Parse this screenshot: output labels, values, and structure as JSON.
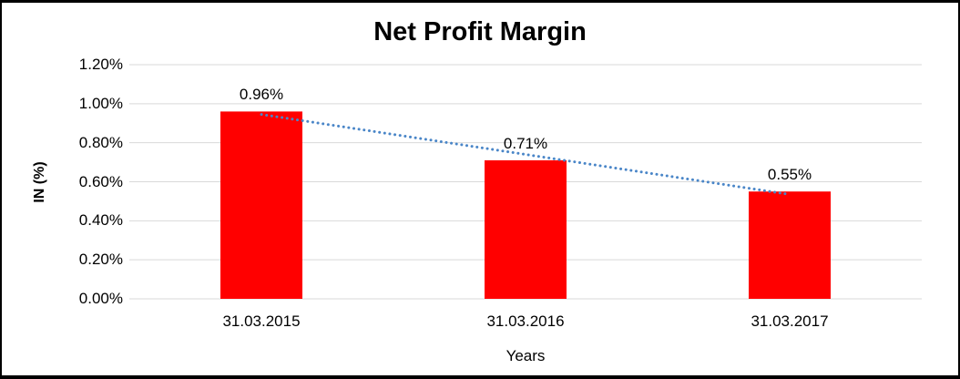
{
  "chart_data": {
    "type": "bar",
    "title": "Net Profit Margin",
    "xlabel": "Years",
    "ylabel": "IN (%)",
    "categories": [
      "31.03.2015",
      "31.03.2016",
      "31.03.2017"
    ],
    "values": [
      0.96,
      0.71,
      0.55
    ],
    "data_labels": [
      "0.96%",
      "0.71%",
      "0.55%"
    ],
    "yticks": [
      "1.20%",
      "1.00%",
      "0.80%",
      "0.60%",
      "0.40%",
      "0.20%",
      "0.00%"
    ],
    "ylim": [
      0,
      1.2
    ],
    "grid": true,
    "legend": "none",
    "bar_color": "#FF0000",
    "gridline_color": "#D9D9D9",
    "trendline": {
      "type": "linear",
      "style": "dotted",
      "color": "#4A86C8"
    }
  }
}
